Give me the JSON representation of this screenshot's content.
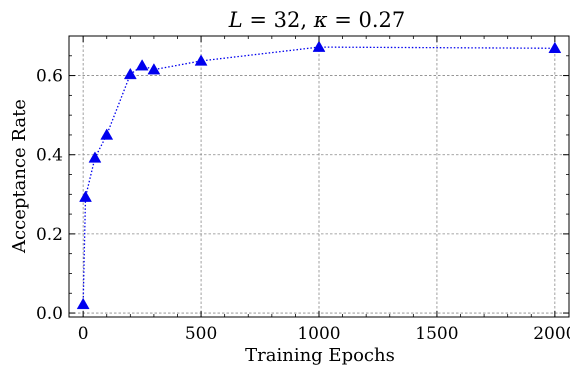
{
  "chart_data": {
    "type": "line",
    "title_parts": [
      "L",
      " = 32, ",
      "κ",
      " = 0.27"
    ],
    "title": "L = 32, κ = 0.27",
    "xlabel": "Training Epochs",
    "ylabel": "Acceptance Rate",
    "xlim": [
      -60,
      2060
    ],
    "ylim": [
      -0.01,
      0.7
    ],
    "xticks": [
      0,
      500,
      1000,
      1500,
      2000
    ],
    "xtick_labels": [
      "0",
      "500",
      "1000",
      "1500",
      "2000"
    ],
    "yticks": [
      0.0,
      0.2,
      0.4,
      0.6
    ],
    "ytick_labels": [
      "0.0",
      "0.2",
      "0.4",
      "0.6"
    ],
    "grid": true,
    "series": [
      {
        "x": [
          0,
          10,
          50,
          100,
          200,
          250,
          300,
          500,
          1000,
          2000
        ],
        "y": [
          0.022,
          0.293,
          0.392,
          0.45,
          0.603,
          0.625,
          0.615,
          0.637,
          0.672,
          0.669
        ],
        "color": "#0000ee",
        "marker": "triangle-up",
        "linestyle": "dotted"
      }
    ]
  }
}
